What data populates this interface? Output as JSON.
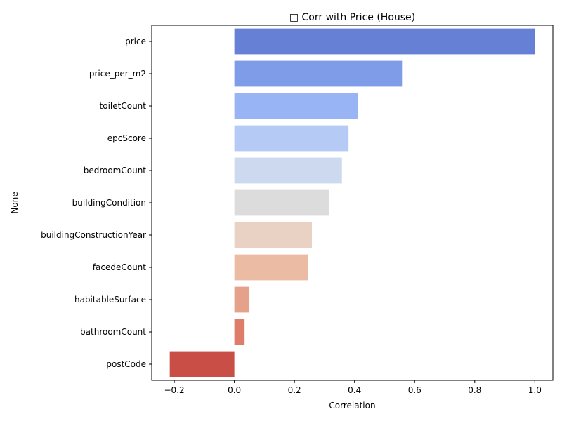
{
  "chart_data": {
    "type": "bar",
    "orientation": "horizontal",
    "title": "□ Corr with Price (House)",
    "xlabel": "Correlation",
    "ylabel": "None",
    "categories": [
      "price",
      "price_per_m2",
      "toiletCount",
      "epcScore",
      "bedroomCount",
      "buildingCondition",
      "buildingConstructionYear",
      "facedeCount",
      "habitableSurface",
      "bathroomCount",
      "postCode"
    ],
    "values": [
      1.0,
      0.558,
      0.41,
      0.38,
      0.358,
      0.316,
      0.258,
      0.245,
      0.05,
      0.034,
      -0.215
    ],
    "colors": [
      "#6680d6",
      "#7f9ce8",
      "#99b4f4",
      "#b5cbf6",
      "#ccd9ee",
      "#dcdcdc",
      "#e9d1c4",
      "#ecbba4",
      "#e6a18b",
      "#dd7d6a",
      "#c84e46"
    ],
    "xlim": [
      -0.275,
      1.06
    ],
    "xticks": [
      -0.2,
      0.0,
      0.2,
      0.4,
      0.6,
      0.8,
      1.0
    ],
    "xtick_labels": [
      "−0.2",
      "0.0",
      "0.2",
      "0.4",
      "0.6",
      "0.8",
      "1.0"
    ],
    "grid": false,
    "legend": "none"
  }
}
